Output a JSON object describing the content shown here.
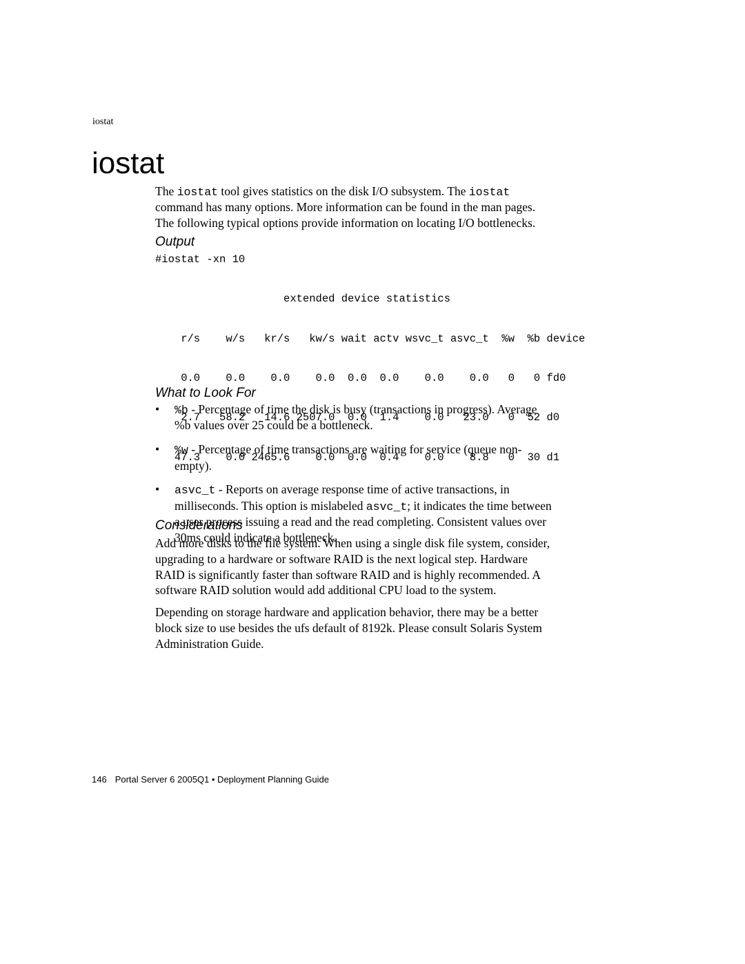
{
  "header_label": "iostat",
  "section_title": "iostat",
  "intro": {
    "pre1": "The ",
    "code1": "iostat",
    "mid1": " tool gives statistics on the disk I/O subsystem. The ",
    "code2": "iostat",
    "post1": " command has many options. More information can be found in the man pages. The following typical options provide information on locating I/O bottlenecks."
  },
  "output_heading": "Output",
  "code": "#iostat -xn 10\n\n                    extended device statistics\n\n    r/s    w/s   kr/s   kw/s wait actv wsvc_t asvc_t  %w  %b device\n\n    0.0    0.0    0.0    0.0  0.0  0.0    0.0    0.0   0   0 fd0\n\n    2.7   58.2   14.6 2507.0  0.0  1.4    0.0   23.0   0  52 d0\n\n   47.3    0.0 2465.6    0.0  0.0  0.4    0.0    8.8   0  30 d1",
  "lookfor_heading": "What to Look For",
  "bullets": [
    {
      "code": "%b",
      "text": " - Percentage of time the disk is busy (transactions in progress). Average %b values over 25 could be a bottleneck."
    },
    {
      "code": "%w",
      "text": " - Percentage of time transactions are waiting for service (queue non-empty)."
    },
    {
      "code": "asvc_t",
      "text_a": " - Reports on average response time of active transactions, in milliseconds. This option is mislabeled ",
      "code2": "asvc_t",
      "text_b": "; it indicates the time between a user process issuing a read and the read completing. Consistent values over 30ms could indicate a bottleneck."
    }
  ],
  "consider_heading": "Considerations",
  "consider_p1": "Add more disks to the file system. When using a single disk file system, consider, upgrading to a hardware or software RAID is the next logical step. Hardware RAID is significantly faster than software RAID and is highly recommended. A software RAID solution would add additional CPU load to the system.",
  "consider_p2": "Depending on storage hardware and application behavior, there may be a better block size to use besides the ufs default of 8192k. Please consult Solaris System Administration Guide.",
  "footer": {
    "page": "146",
    "text": "Portal Server 6 2005Q1 • Deployment Planning Guide"
  }
}
